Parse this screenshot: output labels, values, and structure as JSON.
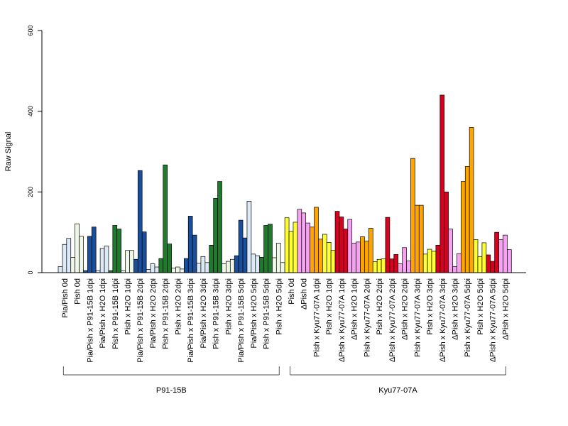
{
  "chart_data": {
    "type": "bar",
    "ylabel": "Raw Signal",
    "ylim": [
      0,
      600
    ],
    "yticks": [
      0,
      200,
      400,
      600
    ],
    "grid": false,
    "categories": [
      {
        "label": "Pia/Pish 0d",
        "color": "#dce9f7",
        "values": [
          15,
          70,
          85
        ]
      },
      {
        "label": "Pish 0d",
        "color": "#eef7e8",
        "values": [
          38,
          121,
          90
        ]
      },
      {
        "label": "Pia/Pish x P91-15B 1dpi",
        "color": "#1a4f9c",
        "values": [
          5,
          90,
          113
        ]
      },
      {
        "label": "Pia/Pish x H2O 1dpi",
        "color": "#dce9f7",
        "values": [
          5,
          60,
          66
        ]
      },
      {
        "label": "Pish x P91-15B 1dpi",
        "color": "#1f7a2e",
        "values": [
          5,
          117,
          108
        ]
      },
      {
        "label": "Pish x H2O 1dpi",
        "color": "#eef7e8",
        "values": [
          5,
          55,
          55
        ]
      },
      {
        "label": "Pia/Pish x P91-15B 2dpi",
        "color": "#1a4f9c",
        "values": [
          33,
          253,
          101
        ]
      },
      {
        "label": "Pia/Pish x H2O 2dpi",
        "color": "#dce9f7",
        "values": [
          8,
          22,
          14
        ]
      },
      {
        "label": "Pish x P91-15B 2dpi",
        "color": "#1f7a2e",
        "values": [
          35,
          267,
          71
        ]
      },
      {
        "label": "Pish x H2O 2dpi",
        "color": "#eef7e8",
        "values": [
          11,
          14,
          9
        ]
      },
      {
        "label": "Pia/Pish x P91-15B 3dpi",
        "color": "#1a4f9c",
        "values": [
          35,
          140,
          93
        ]
      },
      {
        "label": "Pia/Pish x H2O 3dpi",
        "color": "#dce9f7",
        "values": [
          23,
          40,
          25
        ]
      },
      {
        "label": "Pish x P91-15B 3dpi",
        "color": "#1f7a2e",
        "values": [
          68,
          184,
          226
        ]
      },
      {
        "label": "Pish x H2O 3dpi",
        "color": "#eef7e8",
        "values": [
          22,
          28,
          33
        ]
      },
      {
        "label": "Pia/Pish x P91-15B 5dpi",
        "color": "#1a4f9c",
        "values": [
          42,
          130,
          86
        ]
      },
      {
        "label": "Pia/Pish x H2O 5dpi",
        "color": "#dce9f7",
        "values": [
          177,
          46,
          42
        ]
      },
      {
        "label": "Pish x P91-15B 5dpi",
        "color": "#1f7a2e",
        "values": [
          38,
          117,
          120
        ]
      },
      {
        "label": "Pish x H2O 5dpi",
        "color": "#eef7e8",
        "values": [
          37,
          73,
          25
        ]
      },
      {
        "label": "Pish 0d",
        "color": "#ffff33",
        "values": [
          136,
          102,
          125
        ]
      },
      {
        "label": "ΔPish 0d",
        "color": "#f5a3f0",
        "values": [
          157,
          148,
          123
        ]
      },
      {
        "label": "Pish x Kyu77-07A 1dpi",
        "color": "#ffa500",
        "values": [
          113,
          162,
          83
        ]
      },
      {
        "label": "Pish x H2O 1dpi",
        "color": "#ffff33",
        "values": [
          95,
          75,
          55
        ]
      },
      {
        "label": "ΔPish x Kyu77-07A 1dpi",
        "color": "#d7001e",
        "values": [
          152,
          138,
          108
        ]
      },
      {
        "label": "ΔPish x H2O 1dpi",
        "color": "#f5a3f0",
        "values": [
          132,
          73,
          76
        ]
      },
      {
        "label": "Pish x Kyu77-07A 2dpi",
        "color": "#ffa500",
        "values": [
          89,
          78,
          110
        ]
      },
      {
        "label": "Pish x H2O 2dpi",
        "color": "#ffff33",
        "values": [
          27,
          33,
          34
        ]
      },
      {
        "label": "ΔPish x Kyu77-07A 2dpi",
        "color": "#d7001e",
        "values": [
          137,
          34,
          45
        ]
      },
      {
        "label": "ΔPish x H2O 2dpi",
        "color": "#f5a3f0",
        "values": [
          22,
          62,
          29
        ]
      },
      {
        "label": "Pish x Kyu77-07A 3dpi",
        "color": "#ffa500",
        "values": [
          283,
          167,
          167
        ]
      },
      {
        "label": "Pish x H2O 3dpi",
        "color": "#ffff33",
        "values": [
          46,
          58,
          53
        ]
      },
      {
        "label": "ΔPish x Kyu77-07A 3dpi",
        "color": "#d7001e",
        "values": [
          68,
          440,
          200
        ]
      },
      {
        "label": "ΔPish x H2O 3dpi",
        "color": "#f5a3f0",
        "values": [
          108,
          15,
          47
        ]
      },
      {
        "label": "Pish x Kyu77-07A 5dpi",
        "color": "#ffa500",
        "values": [
          226,
          263,
          360
        ]
      },
      {
        "label": "Pish x H2O 5dpi",
        "color": "#ffff33",
        "values": [
          82,
          40,
          74
        ]
      },
      {
        "label": "ΔPish x Kyu77-07A 5dpi",
        "color": "#d7001e",
        "values": [
          44,
          28,
          100
        ]
      },
      {
        "label": "ΔPish x H2O 5dpi",
        "color": "#f5a3f0",
        "values": [
          82,
          93,
          57
        ]
      }
    ],
    "groups": [
      {
        "label": "P91-15B",
        "start": 0,
        "end": 17
      },
      {
        "label": "Kyu77-07A",
        "start": 18,
        "end": 35
      }
    ]
  }
}
